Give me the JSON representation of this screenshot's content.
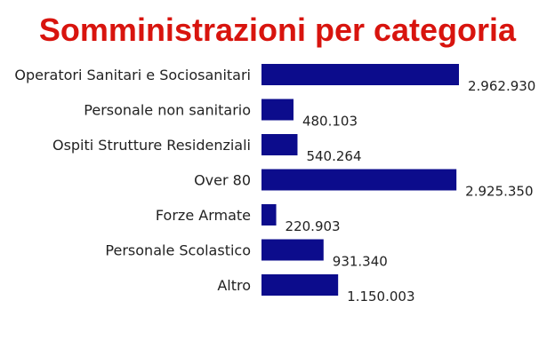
{
  "chart_data": {
    "type": "bar",
    "orientation": "horizontal",
    "title": "Somministrazioni per categoria",
    "categories": [
      "Operatori Sanitari e Sociosanitari",
      "Personale non sanitario",
      "Ospiti Strutture Residenziali",
      "Over 80",
      "Forze Armate",
      "Personale Scolastico",
      "Altro"
    ],
    "values": [
      2962930,
      480103,
      540264,
      2925350,
      220903,
      931340,
      1150003
    ],
    "value_labels": [
      "2.962.930",
      "480.103",
      "540.264",
      "2.925.350",
      "220.903",
      "931.340",
      "1.150.003"
    ],
    "xlim": [
      0,
      2962930
    ],
    "grid": false,
    "legend": "none"
  },
  "colors": {
    "title": "#d8140e",
    "bar": "#0c0c8c",
    "text": "#222222",
    "background": "#ffffff"
  }
}
